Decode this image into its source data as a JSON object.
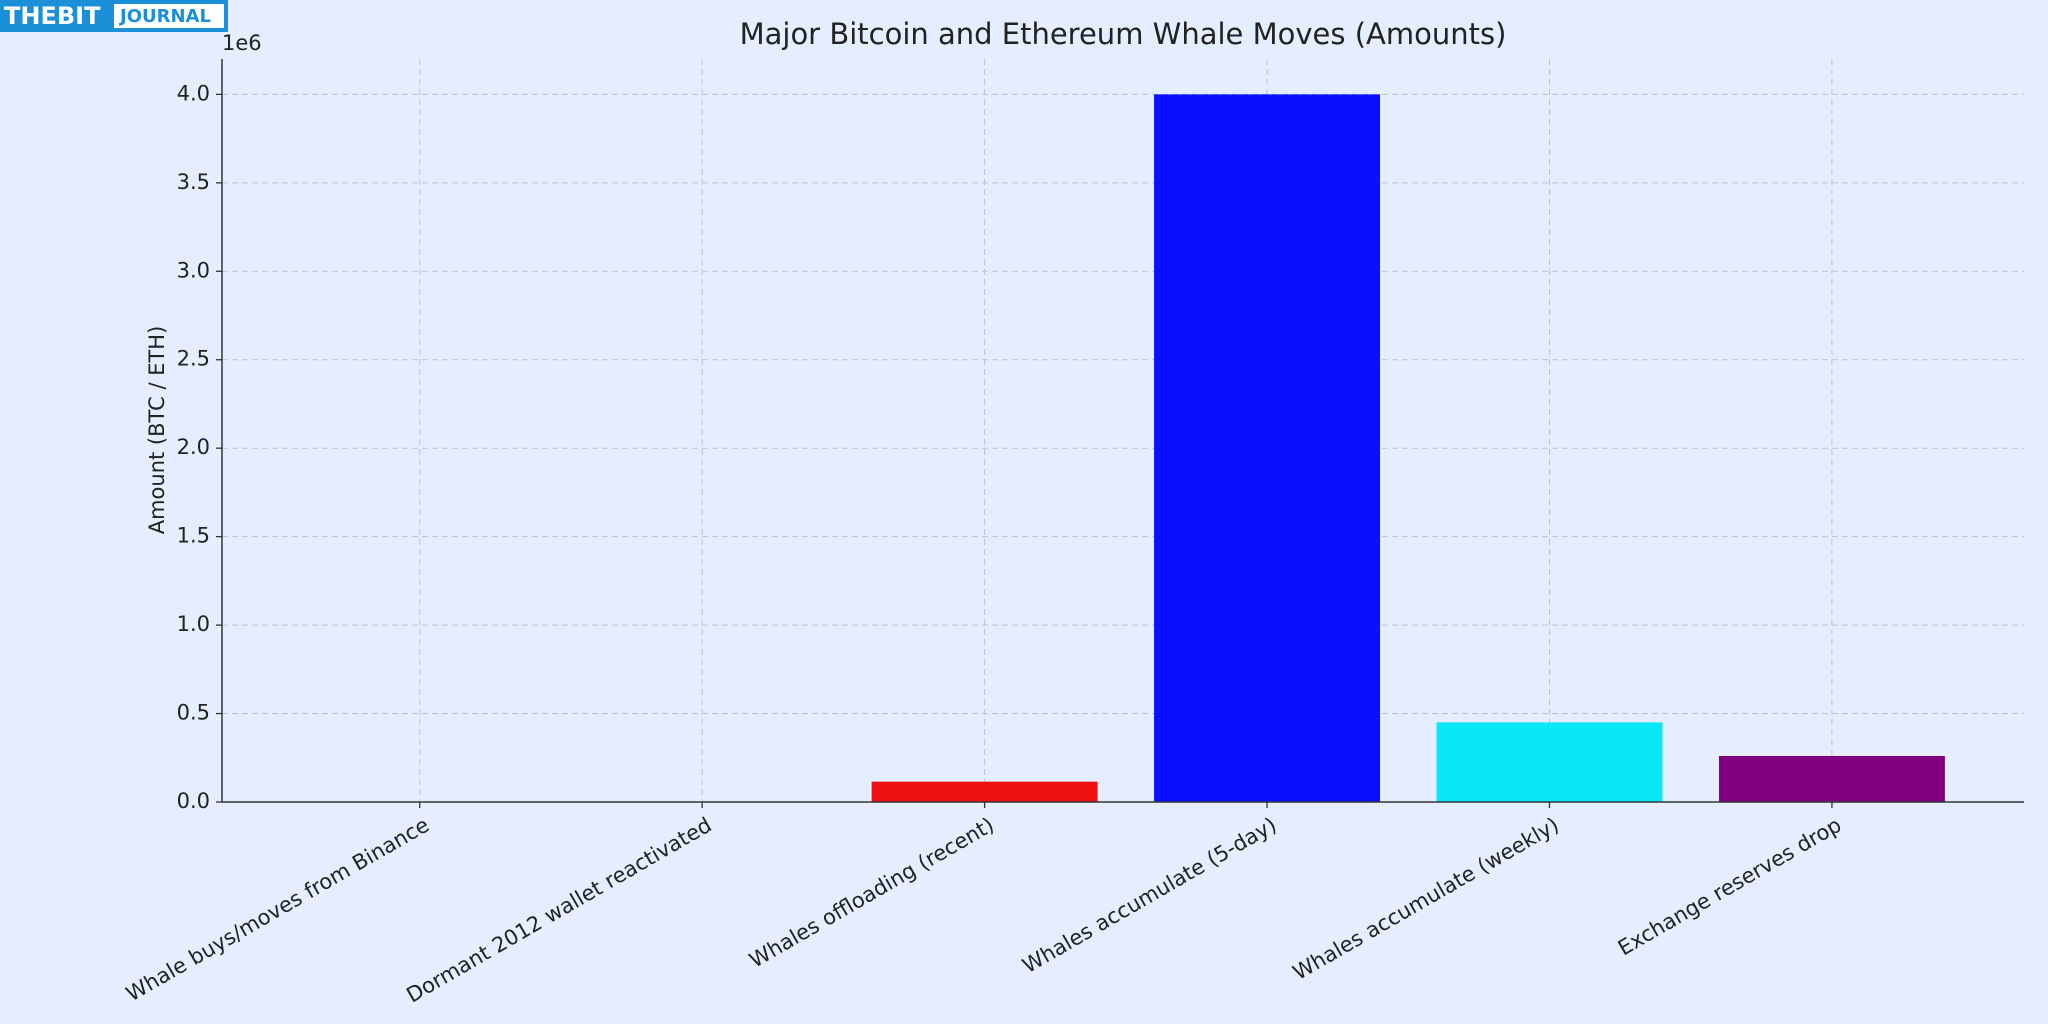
{
  "watermark": [
    "THEBIT",
    "JOURNAL"
  ],
  "chart_data": {
    "type": "bar",
    "title": "Major Bitcoin and Ethereum Whale Moves (Amounts)",
    "y_label": "Amount (BTC / ETH)",
    "y_offset_label": "1e6",
    "categories": [
      "Whale buys/moves from Binance",
      "Dormant 2012 wallet reactivated",
      "Whales offloading (recent)",
      "Whales accumulate (5-day)",
      "Whales accumulate (weekly)",
      "Exchange reserves drop"
    ],
    "values": [
      0,
      0,
      115000,
      4000000,
      450000,
      260000
    ],
    "colors": [
      "#ff8c00",
      "#008000",
      "#ee1010",
      "#0a10ff",
      "#08e8f8",
      "#800080"
    ],
    "ylim": [
      0,
      4200000
    ],
    "yticks": [
      {
        "value": 0,
        "label": "0.0"
      },
      {
        "value": 500000,
        "label": "0.5"
      },
      {
        "value": 1000000,
        "label": "1.0"
      },
      {
        "value": 1500000,
        "label": "1.5"
      },
      {
        "value": 2000000,
        "label": "2.0"
      },
      {
        "value": 2500000,
        "label": "2.5"
      },
      {
        "value": 3000000,
        "label": "3.0"
      },
      {
        "value": 3500000,
        "label": "3.5"
      },
      {
        "value": 4000000,
        "label": "4.0"
      }
    ],
    "grid": true
  }
}
